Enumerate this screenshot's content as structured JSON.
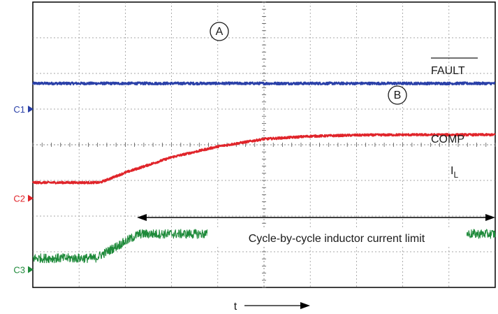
{
  "chart_data": {
    "type": "line",
    "x_label": "t",
    "grid": true,
    "grid_divisions": {
      "x": 10,
      "y": 8
    },
    "channels": [
      {
        "name": "C1",
        "color": "#2a40a8"
      },
      {
        "name": "C2",
        "color": "#e0242a"
      },
      {
        "name": "C3",
        "color": "#1e8a3a"
      }
    ],
    "series": [
      {
        "name": "FAULT",
        "color": "#2a40a8",
        "ground_channel": "C1",
        "marker": "A",
        "x": [
          0,
          10
        ],
        "y": [
          0.72,
          0.72
        ],
        "noise": 0.035
      },
      {
        "name": "COMP",
        "color": "#e0242a",
        "ground_channel": "C2",
        "marker": "B",
        "x": [
          0,
          1.45,
          2.0,
          3.0,
          4.0,
          5.0,
          6.0,
          7.0,
          8.0,
          9.0,
          10.0
        ],
        "y": [
          0.44,
          0.44,
          0.72,
          1.15,
          1.45,
          1.66,
          1.74,
          1.77,
          1.78,
          1.78,
          1.78
        ],
        "noise": 0.03
      },
      {
        "name": "IL",
        "color": "#1e8a3a",
        "ground_channel": "C3",
        "x": [
          0,
          1.35,
          2.3,
          10
        ],
        "y": [
          0.32,
          0.32,
          1.0,
          1.0
        ],
        "noise": 0.13
      }
    ],
    "annotations": [
      {
        "text": "Cycle-by-cycle inductor current limit",
        "x_start": 2.3,
        "x_end": 10
      }
    ],
    "labels": {
      "fault": "FAULT",
      "comp": "COMP",
      "il_main": "I",
      "il_sub": "L",
      "marker_a": "A",
      "marker_b": "B",
      "annotation": "Cycle-by-cycle inductor current limit",
      "time": "t"
    }
  }
}
